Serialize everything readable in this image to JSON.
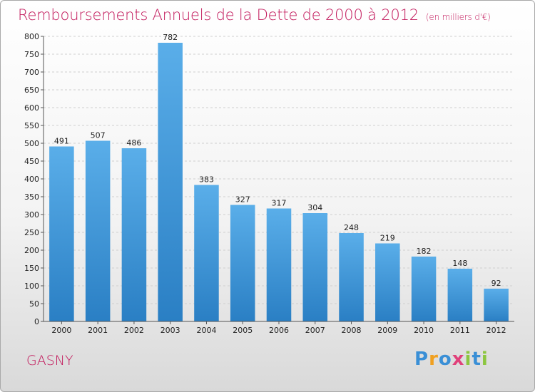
{
  "header": {
    "title": "Remboursements Annuels de la Dette de 2000 à 2012",
    "unit": "(en milliers d'€)"
  },
  "footer": {
    "town": "GASNY",
    "logo": "Proxiti"
  },
  "colors": {
    "title": "#c2185b",
    "bar_top": "#5aaee9",
    "bar_bottom": "#2a7fc4"
  },
  "chart_data": {
    "type": "bar",
    "title": "Remboursements Annuels de la Dette de 2000 à 2012",
    "subtitle": "(en milliers d'€)",
    "categories": [
      "2000",
      "2001",
      "2002",
      "2003",
      "2004",
      "2005",
      "2006",
      "2007",
      "2008",
      "2009",
      "2010",
      "2011",
      "2012"
    ],
    "values": [
      491,
      507,
      486,
      782,
      383,
      327,
      317,
      304,
      248,
      219,
      182,
      148,
      92
    ],
    "ylim": [
      0,
      800
    ],
    "yticks": [
      0,
      50,
      100,
      150,
      200,
      250,
      300,
      350,
      400,
      450,
      500,
      550,
      600,
      650,
      700,
      750,
      800
    ],
    "grid": true,
    "legend": "none"
  }
}
